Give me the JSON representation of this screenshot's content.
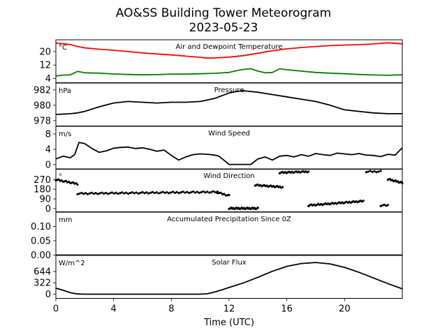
{
  "figure": {
    "title_line1": "AO&SS Building Tower Meteorogram",
    "title_line2": "2023-05-23",
    "xlabel": "Time (UTC)"
  },
  "chart_data": [
    {
      "type": "line",
      "title": "Air and Dewpoint Temperature",
      "unit_label": "°C",
      "ylim": [
        1.5,
        27
      ],
      "yticks": [
        4,
        12,
        20
      ],
      "xlim": [
        0,
        24
      ],
      "series": [
        {
          "color": "#ff0000",
          "x": [
            0,
            0.5,
            1,
            1.5,
            2,
            3,
            4,
            5,
            6,
            7,
            8,
            9,
            10,
            10.5,
            11,
            12,
            13,
            14,
            15,
            16,
            17,
            18,
            19,
            20,
            21,
            22,
            22.5,
            23,
            24
          ],
          "y": [
            25,
            24.6,
            24.2,
            23,
            22.2,
            21.4,
            20.8,
            20,
            19.2,
            18.6,
            18,
            17.3,
            16.6,
            16.1,
            16.2,
            16.7,
            17.6,
            19,
            20.5,
            21.6,
            22.4,
            23,
            23.5,
            23.9,
            24.1,
            24.5,
            24.9,
            25.2,
            24.6
          ]
        },
        {
          "color": "#008000",
          "x": [
            0,
            0.5,
            1,
            1.5,
            2,
            3,
            4,
            5,
            6,
            7,
            8,
            9,
            10,
            11,
            12,
            12.5,
            13,
            13.5,
            14,
            14.5,
            15,
            15.5,
            16,
            17,
            18,
            19,
            20,
            21,
            22,
            23,
            24
          ],
          "y": [
            5.5,
            6,
            6.2,
            8.2,
            7.4,
            7.2,
            6.7,
            6.4,
            6.2,
            6.3,
            6.6,
            6.6,
            6.8,
            7.1,
            7.6,
            8.6,
            9.4,
            9.8,
            8.4,
            7.4,
            7.6,
            9.8,
            9.2,
            8.4,
            7.6,
            7.2,
            6.8,
            6.4,
            6.1,
            5.9,
            6.2
          ]
        }
      ]
    },
    {
      "type": "line",
      "title": "Pressure",
      "unit_label": "hPa",
      "ylim": [
        977.3,
        982.9
      ],
      "yticks": [
        978,
        980,
        982
      ],
      "xlim": [
        0,
        24
      ],
      "series": [
        {
          "color": "#000000",
          "x": [
            0,
            1,
            1.5,
            2,
            3,
            4,
            5,
            6,
            7,
            8,
            9,
            10,
            11,
            12,
            12.5,
            13,
            14,
            15,
            16,
            17,
            18,
            19,
            20,
            21,
            22,
            23,
            24
          ],
          "y": [
            978.8,
            978.9,
            979.0,
            979.2,
            979.8,
            980.3,
            980.5,
            980.4,
            980.3,
            980.4,
            980.4,
            980.5,
            980.9,
            981.6,
            981.8,
            981.9,
            981.7,
            981.4,
            981.1,
            980.8,
            980.5,
            980.0,
            979.4,
            979.2,
            979.0,
            978.9,
            978.9
          ]
        }
      ]
    },
    {
      "type": "line",
      "title": "Wind Speed",
      "unit_label": "m/s",
      "ylim": [
        -1.2,
        10
      ],
      "yticks": [
        0,
        4,
        8
      ],
      "xlim": [
        0,
        24
      ],
      "series": [
        {
          "color": "#000000",
          "x": [
            0,
            0.5,
            1,
            1.3,
            1.6,
            2,
            2.5,
            3,
            3.5,
            4,
            4.5,
            5,
            5.5,
            6,
            6.5,
            7,
            7.5,
            8,
            8.5,
            9,
            9.5,
            10,
            10.5,
            11,
            11.3,
            12,
            13,
            13.5,
            14,
            14.5,
            15,
            15.5,
            16,
            16.5,
            17,
            17.5,
            18,
            18.5,
            19,
            19.5,
            20,
            20.5,
            21,
            21.5,
            22,
            22.5,
            23,
            23.5,
            24
          ],
          "y": [
            1.5,
            2.2,
            1.8,
            2.6,
            5.8,
            5.5,
            4.2,
            3.2,
            3.6,
            4.3,
            4.5,
            4.6,
            4.2,
            4.4,
            4.0,
            3.5,
            3.8,
            2.4,
            1.2,
            2.0,
            2.6,
            2.8,
            2.7,
            2.5,
            2.2,
            0.05,
            0.05,
            0.05,
            1.5,
            2.0,
            1.2,
            2.2,
            2.4,
            2.0,
            2.6,
            2.2,
            2.9,
            2.6,
            2.4,
            3.0,
            2.8,
            2.6,
            2.9,
            2.5,
            2.4,
            2.1,
            2.7,
            2.5,
            4.4
          ]
        }
      ]
    },
    {
      "type": "scatter",
      "title": "Wind Direction",
      "unit_label": "°",
      "ylim": [
        -30,
        370
      ],
      "yticks": [
        0,
        90,
        180,
        270
      ],
      "xlim": [
        0,
        24
      ],
      "series": [
        {
          "color": "#000000",
          "segments": [
            {
              "x0": 0,
              "x1": 1.5,
              "y0": 270,
              "y1": 230,
              "n": 16
            },
            {
              "x0": 1.5,
              "x1": 11.2,
              "y0": 140,
              "y1": 155,
              "n": 70
            },
            {
              "x0": 11.2,
              "x1": 12,
              "y0": 150,
              "y1": 120,
              "n": 8
            },
            {
              "x0": 12,
              "x1": 14,
              "y0": 2,
              "y1": 2,
              "n": 28
            },
            {
              "x0": 13.8,
              "x1": 15.7,
              "y0": 220,
              "y1": 200,
              "n": 22
            },
            {
              "x0": 15.5,
              "x1": 17.5,
              "y0": 335,
              "y1": 345,
              "n": 22
            },
            {
              "x0": 17.5,
              "x1": 21.3,
              "y0": 30,
              "y1": 70,
              "n": 40
            },
            {
              "x0": 21.5,
              "x1": 22.5,
              "y0": 345,
              "y1": 345,
              "n": 8
            },
            {
              "x0": 22.5,
              "x1": 23,
              "y0": 30,
              "y1": 30,
              "n": 5
            },
            {
              "x0": 23,
              "x1": 24,
              "y0": 275,
              "y1": 240,
              "n": 14
            }
          ]
        }
      ]
    },
    {
      "type": "line",
      "title": "Accumulated Precipitation Since 0Z",
      "unit_label": "mm",
      "ylim": [
        0,
        0.15
      ],
      "yticks": [
        0.0,
        0.05,
        0.1
      ],
      "ytick_labels": [
        "0.00",
        "0.05",
        "0.10"
      ],
      "xlim": [
        0,
        24
      ],
      "series": [
        {
          "color": "#000000",
          "x": [
            0,
            24
          ],
          "y": [
            0,
            0
          ]
        }
      ]
    },
    {
      "type": "line",
      "title": "Solar Flux",
      "unit_label": "W/m^2",
      "ylim": [
        -120,
        1100
      ],
      "yticks": [
        0,
        322,
        644
      ],
      "xlim": [
        0,
        24
      ],
      "series": [
        {
          "color": "#000000",
          "x": [
            0,
            0.5,
            1,
            1.5,
            2,
            4,
            6,
            8,
            10,
            10.5,
            11,
            11.5,
            12,
            13,
            14,
            15,
            16,
            17,
            18,
            19,
            20,
            21,
            22,
            23,
            24
          ],
          "y": [
            170,
            110,
            40,
            5,
            0,
            0,
            0,
            0,
            0,
            10,
            60,
            120,
            190,
            320,
            480,
            650,
            790,
            870,
            900,
            860,
            760,
            620,
            460,
            300,
            150
          ]
        }
      ]
    }
  ],
  "xaxis": {
    "ticks": [
      0,
      4,
      8,
      12,
      16,
      20
    ],
    "labels": [
      "0",
      "4",
      "8",
      "12",
      "16",
      "20"
    ]
  }
}
